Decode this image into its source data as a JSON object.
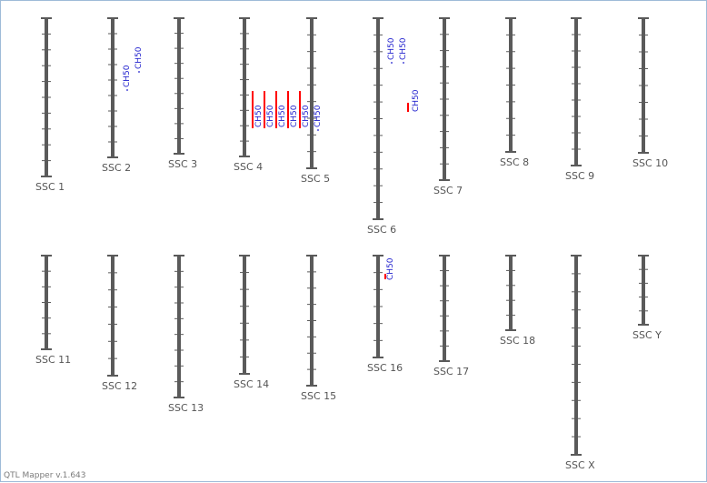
{
  "app": {
    "version_text": "QTL Mapper v.1.643"
  },
  "colors": {
    "chromosome": "#5a5a5a",
    "qtl_bar": "#ff0000",
    "qtl_label": "#1a1acc",
    "chr_label": "#555555"
  },
  "chromosomes": [
    {
      "label": "SSC 1",
      "ticks": 9,
      "qtls": []
    },
    {
      "label": "SSC 2",
      "ticks": 8,
      "qtls": [
        {
          "label": "CH50",
          "bar": false
        },
        {
          "label": "CH50",
          "bar": false
        }
      ]
    },
    {
      "label": "SSC 3",
      "ticks": 8,
      "qtls": []
    },
    {
      "label": "SSC 4",
      "ticks": 8,
      "qtls": [
        {
          "label": "CH50",
          "bar": true
        },
        {
          "label": "CH50",
          "bar": true
        },
        {
          "label": "CH50",
          "bar": true
        },
        {
          "label": "CH50",
          "bar": true
        },
        {
          "label": "CH50",
          "bar": true
        }
      ]
    },
    {
      "label": "SSC 5",
      "ticks": 8,
      "qtls": [
        {
          "label": "CH50",
          "bar": false
        }
      ]
    },
    {
      "label": "SSC 6",
      "ticks": 11,
      "qtls": [
        {
          "label": "CH50",
          "bar": false
        },
        {
          "label": "CH50",
          "bar": false
        },
        {
          "label": "CH50",
          "bar": true
        }
      ]
    },
    {
      "label": "SSC 7",
      "ticks": 9,
      "qtls": []
    },
    {
      "label": "SSC 8",
      "ticks": 7,
      "qtls": []
    },
    {
      "label": "SSC 9",
      "ticks": 8,
      "qtls": []
    },
    {
      "label": "SSC 10",
      "ticks": 7,
      "qtls": []
    },
    {
      "label": "SSC 11",
      "ticks": 5,
      "qtls": []
    },
    {
      "label": "SSC 12",
      "ticks": 6,
      "qtls": []
    },
    {
      "label": "SSC 13",
      "ticks": 8,
      "qtls": []
    },
    {
      "label": "SSC 14",
      "ticks": 6,
      "qtls": []
    },
    {
      "label": "SSC 15",
      "ticks": 7,
      "qtls": []
    },
    {
      "label": "SSC 16",
      "ticks": 5,
      "qtls": [
        {
          "label": "CH50",
          "bar": true
        }
      ]
    },
    {
      "label": "SSC 17",
      "ticks": 6,
      "qtls": []
    },
    {
      "label": "SSC 18",
      "ticks": 4,
      "qtls": []
    },
    {
      "label": "SSC X",
      "ticks": 10,
      "qtls": []
    },
    {
      "label": "SSC Y",
      "ticks": 4,
      "qtls": []
    }
  ]
}
